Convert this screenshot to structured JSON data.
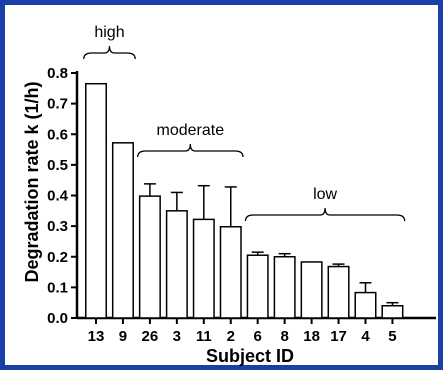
{
  "chart_data": {
    "type": "bar",
    "title": "",
    "xlabel": "Subject ID",
    "ylabel": "Degradation rate k (1/h)",
    "ylim": [
      0,
      0.8
    ],
    "y_ticks": [
      "0.0",
      "0.1",
      "0.2",
      "0.3",
      "0.4",
      "0.5",
      "0.6",
      "0.7",
      "0.8"
    ],
    "categories": [
      "13",
      "9",
      "26",
      "3",
      "11",
      "2",
      "6",
      "8",
      "18",
      "17",
      "4",
      "5"
    ],
    "values": [
      0.765,
      0.572,
      0.398,
      0.35,
      0.322,
      0.298,
      0.205,
      0.2,
      0.183,
      0.168,
      0.083,
      0.04
    ],
    "error_upper": [
      0,
      0.002,
      0.04,
      0.06,
      0.11,
      0.13,
      0.01,
      0.01,
      0.002,
      0.008,
      0.032,
      0.01
    ],
    "groups": [
      {
        "label": "high",
        "from": 0,
        "to": 1
      },
      {
        "label": "moderate",
        "from": 2,
        "to": 5
      },
      {
        "label": "low",
        "from": 6,
        "to": 11
      }
    ],
    "grid": false,
    "bar_fill": "#ffffff",
    "bar_stroke": "#000000",
    "frame_color": "#1a3fa6"
  }
}
